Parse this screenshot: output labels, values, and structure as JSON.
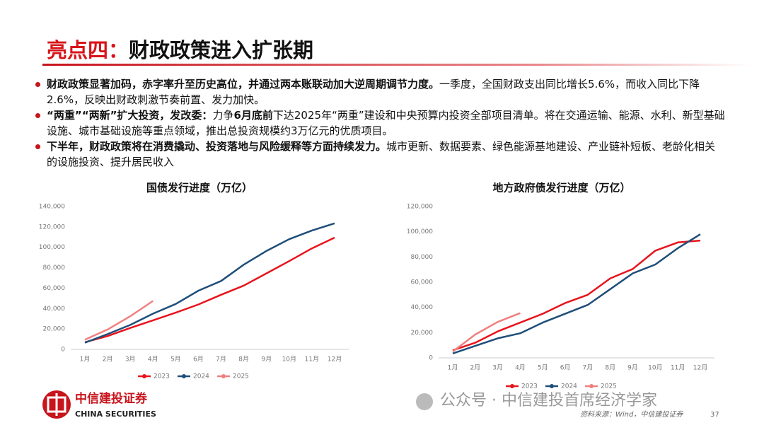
{
  "header": {
    "title_highlight": "亮点四：",
    "title_rest": "财政政策进入扩张期"
  },
  "bullets": [
    {
      "bold": "财政政策显著加码，赤字率升至历史高位，并通过两本账联动加大逆周期调节力度。",
      "text": "一季度，全国财政支出同比增长5.6%，而收入同比下降2.6%，反映出财政刺激节奏前置、发力加快。"
    },
    {
      "bold": "“两重”“两新”扩大投资，发改委：",
      "text": "力争",
      "bold2": "6月底前",
      "text2": "下达2025年“两重”建设和中央预算内投资全部项目清单。将在交通运输、能源、水利、新型基础设施、城市基础设施等重点领域，推出总投资规模约3万亿元的优质项目。"
    },
    {
      "bold": "下半年，财政政策将在消费撬动、投资落地与风险缓释等方面持续发力。",
      "text": "城市更新、数据要素、绿色能源基地建设、产业链补短板、老龄化相关的设施投资、提升居民收入"
    }
  ],
  "chart_data": [
    {
      "type": "line",
      "title": "国债发行进度（万亿）",
      "categories": [
        "1月",
        "2月",
        "3月",
        "4月",
        "5月",
        "6月",
        "7月",
        "8月",
        "9月",
        "10月",
        "11月",
        "12月"
      ],
      "series": [
        {
          "name": "2023",
          "color": "#e8141c",
          "values": [
            7000,
            13000,
            21000,
            28500,
            36000,
            44000,
            53500,
            62500,
            74500,
            86500,
            99000,
            109500
          ]
        },
        {
          "name": "2024",
          "color": "#1f4e79",
          "values": [
            6500,
            15000,
            24000,
            35000,
            44500,
            57500,
            67000,
            83000,
            96500,
            108000,
            116500,
            123500
          ]
        },
        {
          "name": "2025",
          "color": "#f08080",
          "values": [
            9500,
            19500,
            32500,
            47500,
            null,
            null,
            null,
            null,
            null,
            null,
            null,
            null
          ]
        }
      ],
      "ylim": [
        0,
        140000
      ],
      "yticks": [
        0,
        {
          "value": 20000,
          "label": "20,000"
        },
        {
          "value": 40000,
          "label": "40,000"
        },
        {
          "value": 60000,
          "label": "60,000"
        },
        {
          "value": 80000,
          "label": "80,000"
        },
        {
          "value": 100000,
          "label": "100,000"
        },
        {
          "value": 120000,
          "label": "120,000"
        },
        {
          "value": 140000,
          "label": "140,000"
        }
      ],
      "grid": false,
      "legend": "bottom"
    },
    {
      "type": "line",
      "title": "地方政府债发行进度（万亿）",
      "categories": [
        "1月",
        "2月",
        "3月",
        "4月",
        "5月",
        "6月",
        "7月",
        "8月",
        "9月",
        "10月",
        "11月",
        "12月"
      ],
      "series": [
        {
          "name": "2023",
          "color": "#e8141c",
          "values": [
            6000,
            12000,
            21000,
            28000,
            35000,
            43500,
            50000,
            63000,
            70500,
            85000,
            91500,
            93000
          ]
        },
        {
          "name": "2024",
          "color": "#1f4e79",
          "values": [
            3500,
            9500,
            15500,
            19500,
            28000,
            35000,
            42000,
            54500,
            67000,
            74000,
            87000,
            98000
          ]
        },
        {
          "name": "2025",
          "color": "#f08080",
          "values": [
            5000,
            18500,
            28500,
            35500,
            null,
            null,
            null,
            null,
            null,
            null,
            null,
            null
          ]
        }
      ],
      "ylim": [
        0,
        120000
      ],
      "yticks": [
        0,
        {
          "value": 20000,
          "label": "20,000"
        },
        {
          "value": 40000,
          "label": "40,000"
        },
        {
          "value": 60000,
          "label": "60,000"
        },
        {
          "value": 80000,
          "label": "80,000"
        },
        {
          "value": 100000,
          "label": "100,000"
        },
        {
          "value": 120000,
          "label": "120,000"
        }
      ],
      "grid": false,
      "legend": "bottom"
    }
  ],
  "footer": {
    "logo_cn": "中信建投证券",
    "logo_en": "CHINA SECURITIES",
    "watermark": "公众号 · 中信建投首席经济学家",
    "source": "资料来源：Wind，中信建投证券",
    "page": "37"
  }
}
